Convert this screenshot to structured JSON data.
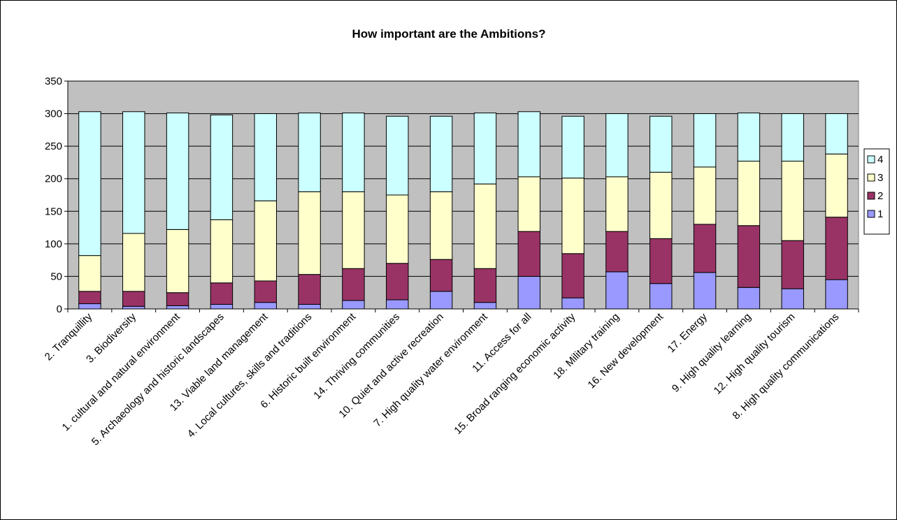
{
  "chart_data": {
    "type": "bar",
    "stacked": true,
    "title": "How important are the Ambitions?",
    "xlabel": "",
    "ylabel": "",
    "ylim": [
      0,
      350
    ],
    "yticks": [
      0,
      50,
      100,
      150,
      200,
      250,
      300,
      350
    ],
    "grid": "horizontal",
    "legend_position": "right",
    "plot_background": "#c0c0c0",
    "categories": [
      "2. Tranquillity",
      "3. Biodiversity",
      "1. cultural and natural environment",
      "5. Archaeology and historic landscapes",
      "13. Viable land management",
      "4. Local cultures, skills and traditions",
      "6. Historic built environment",
      "14. Thriving communities",
      "10. Quiet and active recreation",
      "7. High quality water environment",
      "11. Access for all",
      "15. Broad ranging economic activity",
      "18. Military training",
      "16. New development",
      "17. Energy",
      "9. High quality learning",
      "12. High quality tourism",
      "8. High quality communications"
    ],
    "series": [
      {
        "name": "1",
        "color": "#9999ff",
        "values": [
          8,
          4,
          5,
          7,
          10,
          7,
          13,
          14,
          27,
          10,
          50,
          17,
          57,
          39,
          56,
          33,
          31,
          45
        ]
      },
      {
        "name": "2",
        "color": "#993366",
        "values": [
          19,
          23,
          20,
          33,
          33,
          46,
          49,
          56,
          49,
          52,
          69,
          68,
          62,
          69,
          74,
          95,
          74,
          96
        ]
      },
      {
        "name": "3",
        "color": "#ffffcc",
        "values": [
          55,
          89,
          97,
          97,
          123,
          127,
          118,
          105,
          104,
          130,
          84,
          116,
          84,
          102,
          88,
          99,
          122,
          97
        ]
      },
      {
        "name": "4",
        "color": "#ccffff",
        "values": [
          221,
          187,
          179,
          161,
          134,
          121,
          121,
          121,
          116,
          109,
          100,
          95,
          97,
          86,
          82,
          74,
          73,
          62
        ]
      }
    ]
  }
}
